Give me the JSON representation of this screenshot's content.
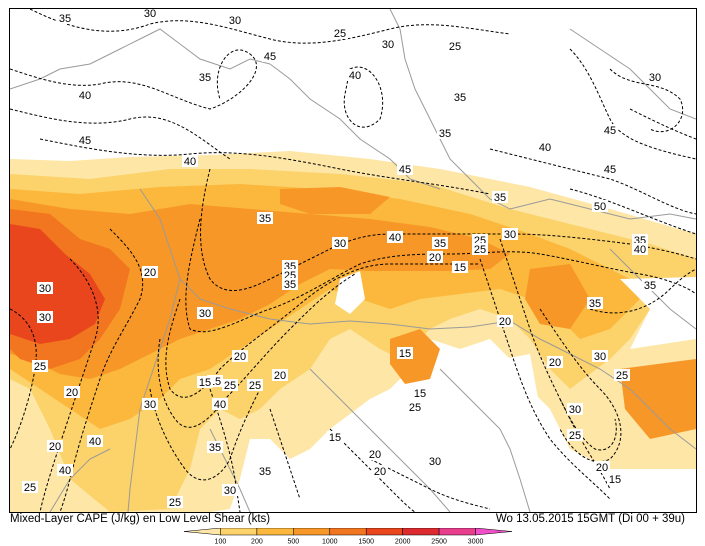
{
  "footer": {
    "title": "Mixed-Layer CAPE (J/kg) en Low Level Shear (kts)",
    "valid_time": "Wo 13.05.2015 15GMT (Di 00 + 39u)"
  },
  "legend": {
    "ticks": [
      "100",
      "200",
      "500",
      "1000",
      "1500",
      "2000",
      "2500",
      "3000"
    ],
    "colors": [
      "#fde6a6",
      "#fcd26a",
      "#fbb83c",
      "#f79728",
      "#f2761f",
      "#e9461e",
      "#dc2a2f",
      "#e93d8e",
      "#f14fc8"
    ]
  },
  "map": {
    "shear_labels": [
      "35",
      "30",
      "30",
      "25",
      "25",
      "30",
      "45",
      "35",
      "40",
      "35",
      "40",
      "35",
      "40",
      "45",
      "45",
      "40",
      "45",
      "35",
      "35",
      "30",
      "30",
      "25",
      "20",
      "15",
      "40",
      "35",
      "25",
      "20",
      "15",
      "30",
      "35",
      "25",
      "30",
      "20",
      "15",
      "35",
      "30",
      "25",
      "20",
      "15",
      "40",
      "25",
      "20",
      "40",
      "30",
      "25",
      "25",
      "20",
      "15",
      "15",
      "20",
      "25",
      "35",
      "45",
      "50",
      "35",
      "40",
      "35",
      "30",
      "25",
      "20",
      "30",
      "25",
      "20",
      "15",
      "30",
      "35",
      "15",
      "20",
      "20",
      "30",
      "25",
      "35",
      "40",
      "30"
    ]
  }
}
